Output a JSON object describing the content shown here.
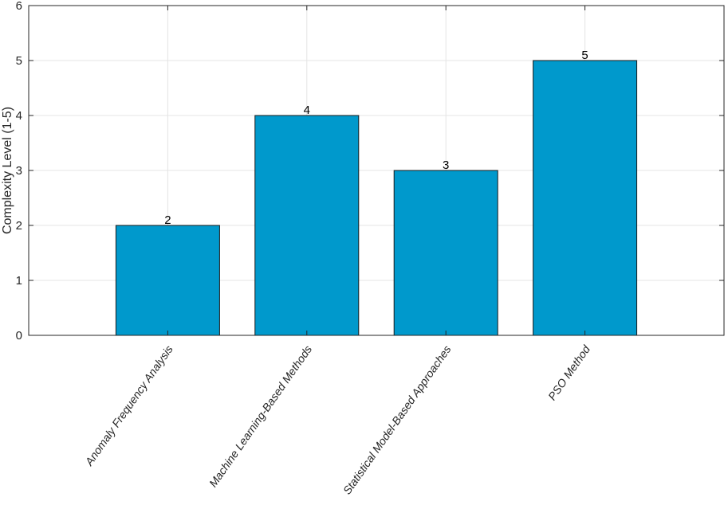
{
  "chart_data": {
    "type": "bar",
    "categories": [
      "Anomaly Frequency Analysis",
      "Machine Learning-Based Methods",
      "Statistical Model-Based Approaches",
      "PSO Method"
    ],
    "values": [
      2,
      4,
      3,
      5
    ],
    "data_labels": [
      "2",
      "4",
      "3",
      "5"
    ],
    "title": "",
    "xlabel": "",
    "ylabel": "Complexity Level (1-5)",
    "ylim": [
      0,
      6
    ],
    "yticks": [
      0,
      1,
      2,
      3,
      4,
      5,
      6
    ],
    "ytick_labels": [
      "0",
      "1",
      "2",
      "3",
      "4",
      "5",
      "6"
    ],
    "xlim": [
      0,
      5
    ],
    "category_positions": [
      1,
      2,
      3,
      4
    ],
    "grid": true,
    "bar_color": "#0099CC",
    "bar_edge_color": "#1A1A1A"
  }
}
